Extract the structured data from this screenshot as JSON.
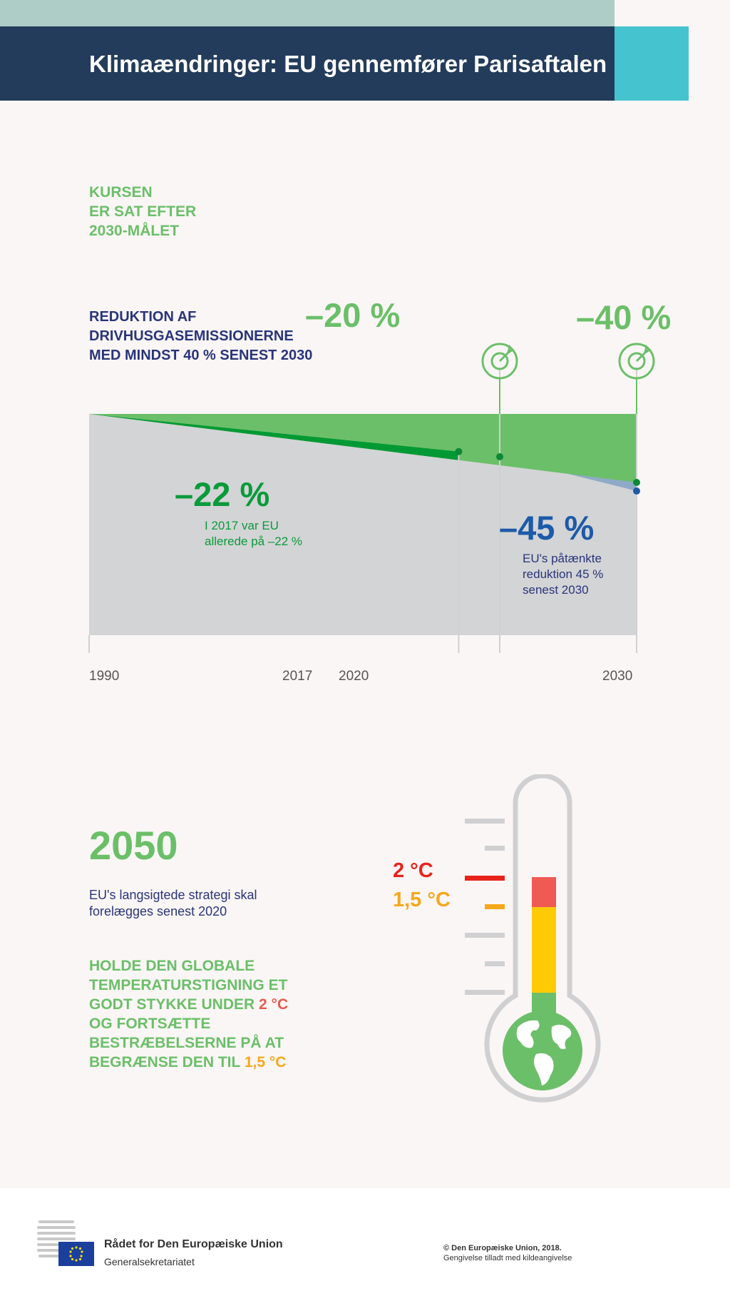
{
  "header": {
    "title": "Klimaændringer: EU gennemfører Parisaftalen"
  },
  "course": {
    "lines": [
      "KURSEN",
      "ER SAT EFTER",
      "2030-MÅLET"
    ]
  },
  "reduction_heading": "REDUKTION AF DRIVHUSGASEMISSIONERNE MED MINDST 40 % SENEST 2030",
  "targets": [
    {
      "year": "2020",
      "label": "–20 %"
    },
    {
      "year": "2030",
      "label": "–40 %"
    }
  ],
  "achieved": {
    "label": "–22 %",
    "note": "I 2017 var EU allerede på –22 %"
  },
  "projected": {
    "label": "–45 %",
    "note": "EU's påtænkte reduktion 45 % senest 2030"
  },
  "years": [
    "1990",
    "2017",
    "2020",
    "2030"
  ],
  "strategy_2050": {
    "year": "2050",
    "text": "EU's langsigtede strategi skal forelægges senest 2020"
  },
  "goal": {
    "part1": "HOLDE DEN GLOBALE TEMPERATURSTIGNING ET GODT STYKKE UNDER",
    "red_value": "2 °C",
    "part2": "OG FORTSÆTTE BESTRÆBELSERNE PÅ AT BEGRÆNSE DEN TIL",
    "orange_value": "1,5 °C"
  },
  "thermometer": {
    "label_high": "2 °C",
    "label_low": "1,5 °C"
  },
  "footer": {
    "organisation": "Rådet for Den Europæiske Union",
    "department": "Generalsekretariatet",
    "copyright": "© Den Europæiske Union, 2018.",
    "reproduction": "Gengivelse tilladt med kildeangivelse"
  },
  "chart_data": {
    "type": "area",
    "x": [
      1990,
      2017,
      2020,
      2030
    ],
    "series": [
      {
        "x": [
          1990,
          2017
        ],
        "values": [
          0,
          -22
        ]
      },
      {
        "x": [
          2017,
          2020,
          2030
        ],
        "values": [
          -22,
          -25,
          -45
        ]
      },
      {
        "x": [
          1990,
          2020,
          2030
        ],
        "values": [
          0,
          -20,
          -40
        ]
      }
    ],
    "annotations": [
      "–20 %",
      "–40 %",
      "–22 %",
      "–45 %"
    ],
    "colors": {
      "target_area": "#6bbf69",
      "achieved": "#009933",
      "projected": "#8faac8",
      "baseline": "#d3d4d6"
    }
  },
  "colors": {
    "header_bg": "#233c5b",
    "accent": "#45c3cf",
    "green": "#6bbf69",
    "navy_text": "#29357a",
    "red": "#e8231b",
    "orange": "#f6a81b"
  }
}
